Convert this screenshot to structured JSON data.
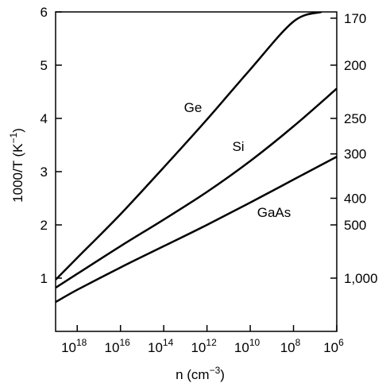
{
  "chart_data": {
    "type": "line",
    "xlabel": "n (cm",
    "xlabel_exponent": "−3",
    "xlabel_close": ")",
    "ylabel": "1000/T (K",
    "ylabel_exponent": "−1",
    "ylabel_close": ")",
    "x_scale": "log",
    "x_direction": "decreasing",
    "xlim": [
      1e+19,
      1000000.0
    ],
    "ylim": [
      0,
      6
    ],
    "grid": false,
    "legend": "none (series labelled inline)",
    "x_ticks": [
      {
        "value": 1e+18,
        "base": "10",
        "exponent": "18"
      },
      {
        "value": 1e+16,
        "base": "10",
        "exponent": "16"
      },
      {
        "value": 100000000000000.0,
        "base": "10",
        "exponent": "14"
      },
      {
        "value": 1000000000000.0,
        "base": "10",
        "exponent": "12"
      },
      {
        "value": 10000000000.0,
        "base": "10",
        "exponent": "10"
      },
      {
        "value": 100000000.0,
        "base": "10",
        "exponent": "8"
      },
      {
        "value": 1000000.0,
        "base": "10",
        "exponent": "6"
      }
    ],
    "y_ticks": [
      "1",
      "2",
      "3",
      "4",
      "5",
      "6"
    ],
    "y_right_ticks": [
      {
        "label": "170",
        "T": 170
      },
      {
        "label": "200",
        "T": 200
      },
      {
        "label": "250",
        "T": 250
      },
      {
        "label": "300",
        "T": 300
      },
      {
        "label": "400",
        "T": 400
      },
      {
        "label": "500",
        "T": 500
      },
      {
        "label": "1,000",
        "T": 1000
      }
    ],
    "series": [
      {
        "name": "Ge",
        "x": [
          1e+19,
          1e+18,
          1e+16,
          100000000000000.0,
          1000000000000.0,
          10000000000.0,
          100000000.0,
          5000000.0
        ],
        "y": [
          0.97,
          1.38,
          2.2,
          3.08,
          3.98,
          4.92,
          5.82,
          6.0
        ]
      },
      {
        "name": "Si",
        "x": [
          1e+19,
          1e+18,
          1e+16,
          100000000000000.0,
          1000000000000.0,
          10000000000.0,
          100000000.0,
          1000000.0
        ],
        "y": [
          0.82,
          1.08,
          1.6,
          2.1,
          2.62,
          3.2,
          3.85,
          4.56
        ]
      },
      {
        "name": "GaAs",
        "x": [
          1e+19,
          1e+18,
          1e+16,
          100000000000000.0,
          1000000000000.0,
          10000000000.0,
          100000000.0,
          1000000.0
        ],
        "y": [
          0.55,
          0.78,
          1.2,
          1.6,
          2.0,
          2.42,
          2.85,
          3.28
        ]
      }
    ]
  }
}
